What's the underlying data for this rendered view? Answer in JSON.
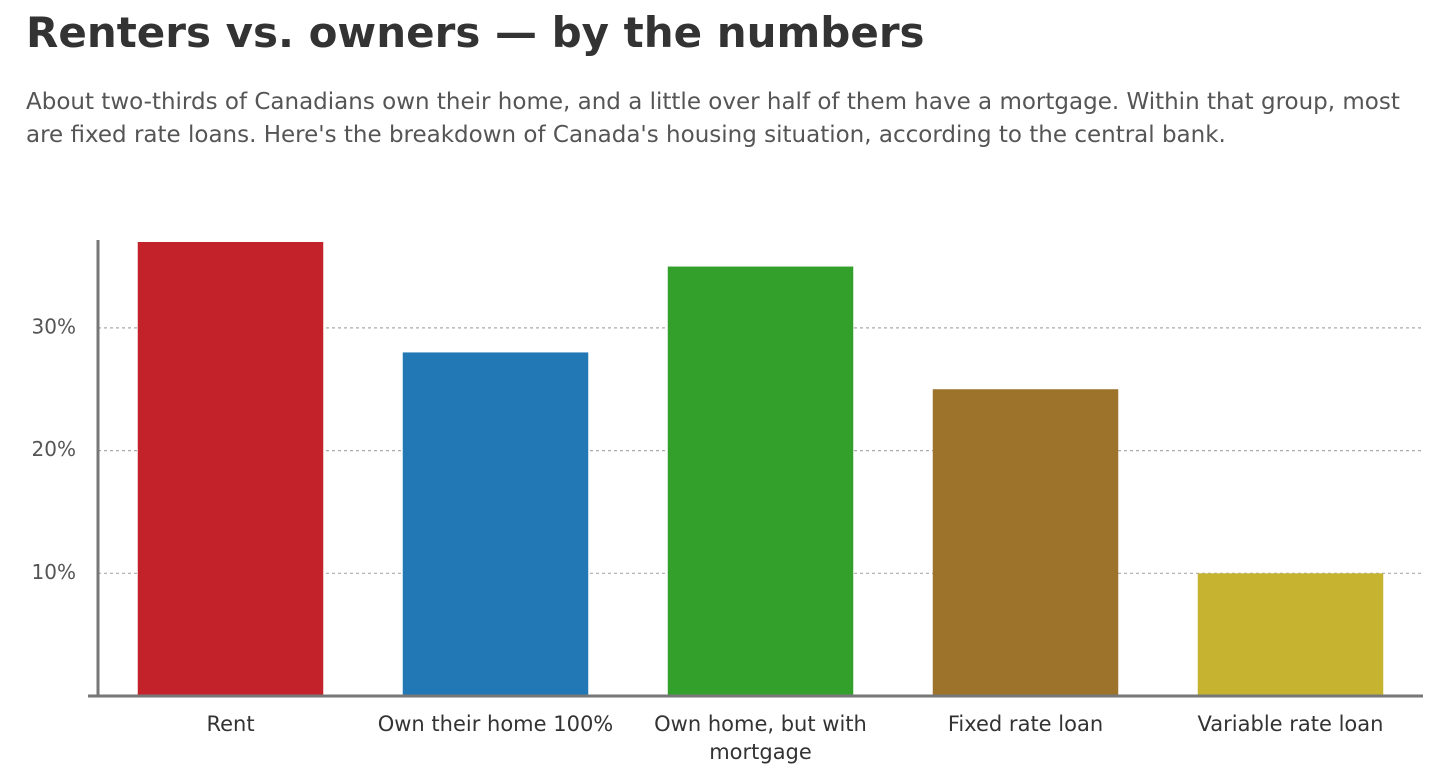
{
  "chart_data": {
    "type": "bar",
    "title": "Renters vs. owners — by the numbers",
    "subtitle": "About two-thirds of Canadians own their home, and a little over half of them have a mortgage. Within that group, most are fixed rate loans. Here's the breakdown of Canada's housing situation, according to the central bank.",
    "categories": [
      "Rent",
      "Own their home 100%",
      "Own home, but with mortgage",
      "Fixed rate loan",
      "Variable rate loan"
    ],
    "values": [
      37,
      28,
      35,
      25,
      10
    ],
    "colors": [
      "#c4222a",
      "#2278b5",
      "#33a02c",
      "#9d722a",
      "#c6b430"
    ],
    "ylim": [
      0,
      37
    ],
    "yticks": [
      {
        "value": 10,
        "label": "10%"
      },
      {
        "value": 20,
        "label": "20%"
      },
      {
        "value": 30,
        "label": "30%"
      }
    ],
    "grid": true
  }
}
